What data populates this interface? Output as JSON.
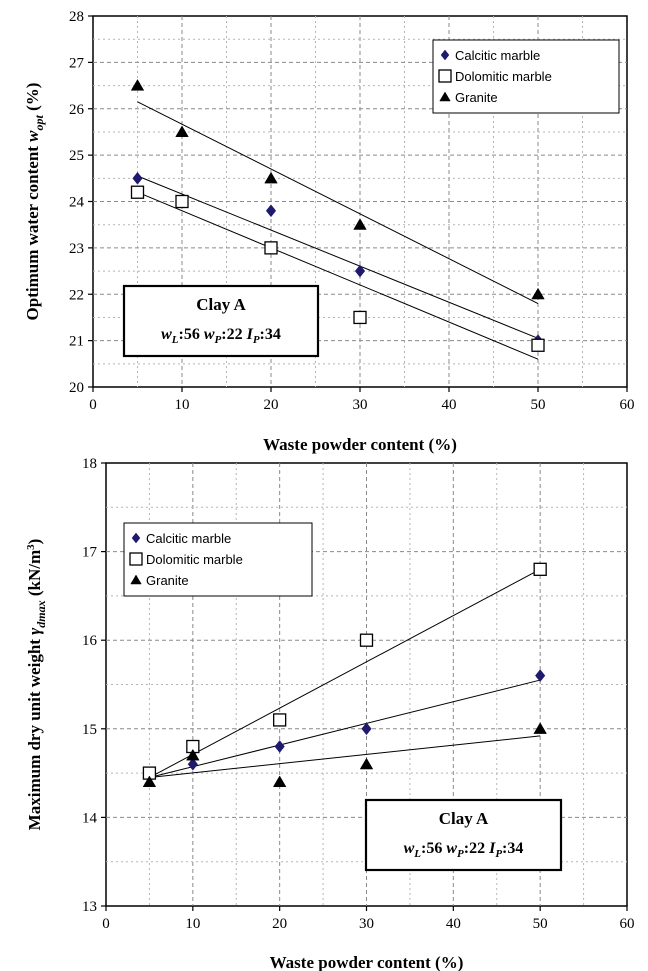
{
  "chart_data": [
    {
      "type": "scatter",
      "xlabel": "Waste powder content  (%)",
      "ylabel_main": "Optimum water content ",
      "ylabel_symbol": "w",
      "ylabel_sub": "opt",
      "ylabel_unit": " (%)",
      "xlim": [
        0,
        60
      ],
      "ylim": [
        20,
        28
      ],
      "xticks": [
        "0",
        "10",
        "20",
        "30",
        "40",
        "50",
        "60"
      ],
      "yticks": [
        "20",
        "21",
        "22",
        "23",
        "24",
        "25",
        "26",
        "27",
        "28"
      ],
      "grid": true,
      "legend_position": "top-right",
      "series": [
        {
          "name": "Calcitic marble",
          "marker": "diamond",
          "color": "#1f1a6e",
          "x": [
            5,
            10,
            20,
            30,
            50
          ],
          "y": [
            24.5,
            24.0,
            23.8,
            22.5,
            21.0
          ],
          "trend": [
            [
              5,
              24.55
            ],
            [
              50,
              21.05
            ]
          ]
        },
        {
          "name": "Dolomitic marble",
          "marker": "open-square",
          "color": "#000000",
          "x": [
            5,
            10,
            20,
            30,
            50
          ],
          "y": [
            24.2,
            24.0,
            23.0,
            21.5,
            20.9
          ],
          "trend": [
            [
              5,
              24.2
            ],
            [
              50,
              20.6
            ]
          ]
        },
        {
          "name": "Granite",
          "marker": "triangle",
          "color": "#000000",
          "x": [
            5,
            10,
            20,
            30,
            50
          ],
          "y": [
            26.5,
            25.5,
            24.5,
            23.5,
            22.0
          ],
          "trend": [
            [
              5,
              26.15
            ],
            [
              50,
              21.8
            ]
          ]
        }
      ],
      "annotation": {
        "title": "Clay A",
        "wl": "56",
        "wp": "22",
        "ip": "34",
        "position": "bottom-left"
      }
    },
    {
      "type": "scatter",
      "xlabel": "Waste powder content  (%)",
      "ylabel_main": "Maximum dry unit weight ",
      "ylabel_symbol": "γ",
      "ylabel_sub": "dmax",
      "ylabel_unit": "  (kN/m",
      "ylabel_sup": "3",
      "ylabel_close": ")",
      "xlim": [
        0,
        60
      ],
      "ylim": [
        13,
        18
      ],
      "xticks": [
        "0",
        "10",
        "20",
        "30",
        "40",
        "50",
        "60"
      ],
      "yticks": [
        "13",
        "14",
        "15",
        "16",
        "17",
        "18"
      ],
      "grid": true,
      "legend_position": "top-left",
      "series": [
        {
          "name": "Calcitic marble",
          "marker": "diamond",
          "color": "#1f1a6e",
          "x": [
            5,
            10,
            20,
            30,
            50
          ],
          "y": [
            14.5,
            14.6,
            14.8,
            15.0,
            15.6
          ],
          "trend": [
            [
              5,
              14.45
            ],
            [
              50,
              15.55
            ]
          ]
        },
        {
          "name": "Dolomitic marble",
          "marker": "open-square",
          "color": "#000000",
          "x": [
            5,
            10,
            20,
            30,
            50
          ],
          "y": [
            14.5,
            14.8,
            15.1,
            16.0,
            16.8
          ],
          "trend": [
            [
              5,
              14.45
            ],
            [
              50,
              16.8
            ]
          ]
        },
        {
          "name": "Granite",
          "marker": "triangle",
          "color": "#000000",
          "x": [
            5,
            10,
            20,
            30,
            50
          ],
          "y": [
            14.4,
            14.7,
            14.4,
            14.6,
            15.0
          ],
          "trend": [
            [
              5,
              14.45
            ],
            [
              50,
              14.92
            ]
          ]
        }
      ],
      "annotation": {
        "title": "Clay A",
        "wl": "56",
        "wp": "22",
        "ip": "34",
        "position": "bottom-right"
      }
    }
  ]
}
